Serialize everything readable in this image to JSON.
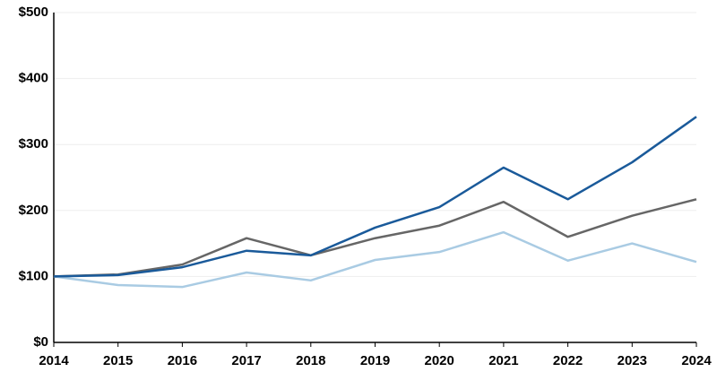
{
  "chart_data": {
    "type": "line",
    "x": [
      2014,
      2015,
      2016,
      2017,
      2018,
      2019,
      2020,
      2021,
      2022,
      2023,
      2024
    ],
    "xlim": [
      2014,
      2024
    ],
    "xticks": [
      2014,
      2015,
      2016,
      2017,
      2018,
      2019,
      2020,
      2021,
      2022,
      2023,
      2024
    ],
    "ylim": [
      0,
      500
    ],
    "yticks": [
      {
        "value": 0,
        "label": "$0"
      },
      {
        "value": 100,
        "label": "$100"
      },
      {
        "value": 200,
        "label": "$200"
      },
      {
        "value": 300,
        "label": "$300"
      },
      {
        "value": 400,
        "label": "$400"
      },
      {
        "value": 500,
        "label": "$500"
      }
    ],
    "grid": true,
    "series": [
      {
        "color": "#a9cbe3",
        "values": [
          100,
          87,
          84,
          106,
          94,
          125,
          137,
          167,
          124,
          150,
          122
        ]
      },
      {
        "color": "#666666",
        "values": [
          100,
          103,
          118,
          158,
          132,
          158,
          177,
          213,
          160,
          192,
          217
        ]
      },
      {
        "color": "#1a5a9a",
        "values": [
          100,
          102,
          114,
          139,
          132,
          174,
          205,
          265,
          217,
          273,
          342
        ]
      }
    ]
  }
}
